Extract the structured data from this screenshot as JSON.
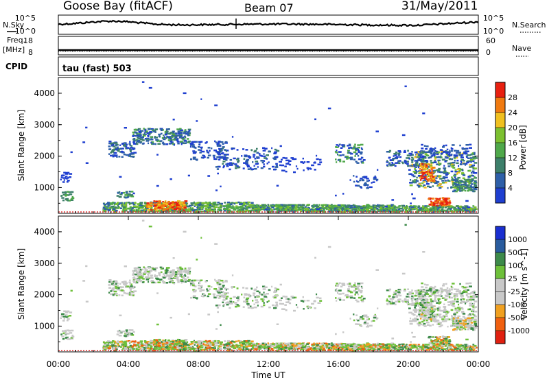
{
  "header": {
    "station": "Goose Bay (fitACF)",
    "beam": "Beam 07",
    "date": "31/May/2011"
  },
  "left_labels": {
    "nsky": "N.Sky",
    "freq": "Freq.",
    "freq_unit": "[MHz]",
    "cpid": "CPID"
  },
  "right_labels": {
    "nsearch": "N.Search",
    "nave": "Nave"
  },
  "cpid_text": "tau (fast) 503",
  "noise_panel": {
    "left_ticks": [
      "10^5",
      "10^0"
    ],
    "right_ticks": [
      "10^5",
      "10^0"
    ]
  },
  "freq_panel": {
    "left_ticks": [
      "18",
      "8"
    ],
    "right_ticks": [
      "60",
      "0"
    ]
  },
  "colors": {
    "power_scale": [
      "#1f3fd0",
      "#2e5fa8",
      "#3d7f6a",
      "#4fa84a",
      "#7cc030",
      "#f0c020",
      "#f07a10",
      "#e82010"
    ],
    "velocity_scale": [
      "#1a2fd0",
      "#2a5c9e",
      "#3d8a4a",
      "#6ec03a",
      "#c8c8c8",
      "#c8c8c8",
      "#f0a020",
      "#f06010",
      "#e02010"
    ],
    "range_gate_row": "#e03030"
  },
  "chart_data": [
    {
      "type": "line",
      "name": "noise-panel",
      "description_series": "N.Sky noise vs time",
      "y_scale": "log",
      "ylim": [
        1,
        100000
      ],
      "x": [
        "00:00",
        "04:00",
        "08:00",
        "12:00",
        "16:00",
        "20:00",
        "00:00"
      ]
    },
    {
      "type": "heatmap",
      "name": "power-panel",
      "ylabel": "Slant Range [km]",
      "xlabel": "",
      "ylim": [
        180,
        4500
      ],
      "y_ticks": [
        1000,
        2000,
        3000,
        4000
      ],
      "xlim": [
        "00:00",
        "24:00"
      ],
      "colorbar_label": "Power [dB]",
      "colorbar_ticks": [
        "4",
        "8",
        "12",
        "16",
        "20",
        "24",
        "28"
      ]
    },
    {
      "type": "heatmap",
      "name": "velocity-panel",
      "ylabel": "Slant Range [km]",
      "xlabel": "Time UT",
      "ylim": [
        180,
        4500
      ],
      "y_ticks": [
        1000,
        2000,
        3000,
        4000
      ],
      "x_ticks": [
        "00:00",
        "04:00",
        "08:00",
        "12:00",
        "16:00",
        "20:00",
        "00:00"
      ],
      "colorbar_label": "Velocity [m s^-1]",
      "colorbar_ticks": [
        "1000",
        "500",
        "100",
        "25",
        "-25",
        "-100",
        "-500",
        "-1000"
      ]
    }
  ]
}
